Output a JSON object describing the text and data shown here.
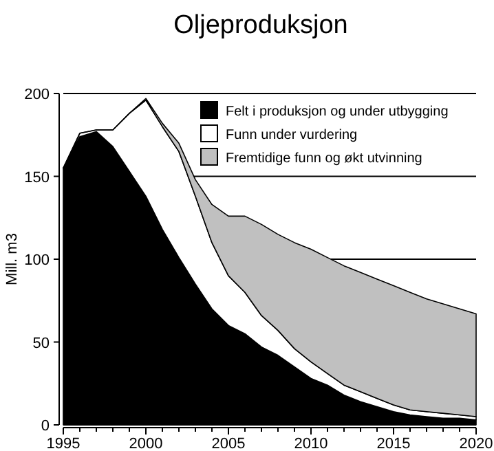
{
  "chart_data": {
    "type": "area",
    "title": "Oljeproduksjon",
    "ylabel": "Mill. m3",
    "stacked": true,
    "x": [
      1995,
      1996,
      1997,
      1998,
      1999,
      2000,
      2001,
      2002,
      2003,
      2004,
      2005,
      2006,
      2007,
      2008,
      2009,
      2010,
      2011,
      2012,
      2013,
      2014,
      2015,
      2016,
      2017,
      2018,
      2019,
      2020
    ],
    "series": [
      {
        "name": "Felt i produksjon og under utbygging",
        "color": "#000000",
        "values": [
          155,
          174,
          177,
          168,
          153,
          138,
          118,
          101,
          85,
          70,
          60,
          55,
          47,
          42,
          35,
          28,
          24,
          18,
          14,
          11,
          8,
          6,
          5,
          4,
          4,
          3
        ]
      },
      {
        "name": "Funn under vurdering",
        "color": "#ffffff",
        "values": [
          0,
          2,
          1,
          10,
          35,
          58,
          62,
          64,
          53,
          40,
          30,
          25,
          19,
          15,
          11,
          10,
          7,
          6,
          6,
          5,
          4,
          3,
          3,
          3,
          2,
          2
        ]
      },
      {
        "name": "Fremtidige funn og økt utvinning",
        "color": "#c0c0c0",
        "values": [
          0,
          0,
          0,
          0,
          0,
          1,
          2,
          5,
          10,
          23,
          36,
          46,
          55,
          58,
          64,
          68,
          70,
          72,
          72,
          72,
          72,
          71,
          68,
          66,
          64,
          62
        ]
      }
    ],
    "xlim": [
      1995,
      2020
    ],
    "xticks": [
      1995,
      2000,
      2005,
      2010,
      2015,
      2020
    ],
    "ylim": [
      0,
      200
    ],
    "yticks": [
      0,
      50,
      100,
      150,
      200
    ],
    "grid": "y",
    "legend": "top right"
  }
}
